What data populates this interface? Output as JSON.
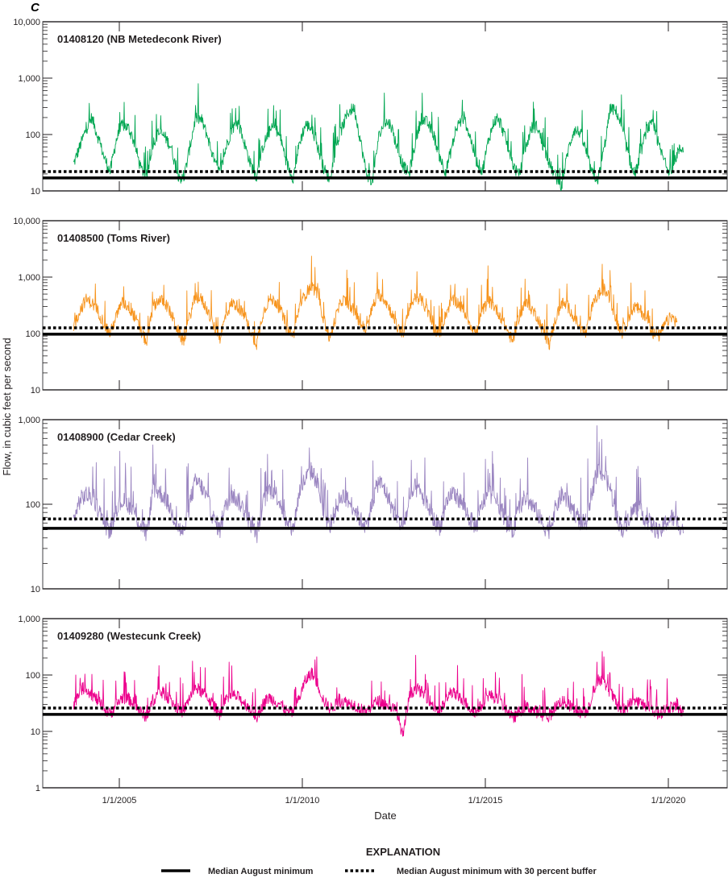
{
  "chart_data": {
    "type": "line",
    "panel_letter": "C",
    "xlabel": "Date",
    "ylabel": "Flow, in cubic feet per second",
    "x_range": [
      "2003-01-01",
      "2021-07-01"
    ],
    "x_ticks": [
      "1/1/2005",
      "1/1/2010",
      "1/1/2015",
      "1/1/2020"
    ],
    "x_tick_years": [
      2005,
      2010,
      2015,
      2020
    ],
    "y_scale": "log",
    "legend": {
      "title": "EXPLANATION",
      "position": "bottom-center",
      "items": [
        {
          "label": "Median August minimum",
          "style": "solid"
        },
        {
          "label": "Median August minimum with 30 percent buffer",
          "style": "dotted"
        }
      ]
    },
    "series_start_year": 2003.75,
    "series_step_years": 0.1667,
    "panels": [
      {
        "title": "01408120 (NB Metedeconk River)",
        "color": "#00a651",
        "ylim": [
          10,
          10000
        ],
        "y_ticks": [
          10,
          100,
          1000,
          10000
        ],
        "y_tick_labels": [
          "10",
          "100",
          "1,000",
          "10,000"
        ],
        "median_august_minimum": 17,
        "median_august_minimum_30pct_buffer": 22,
        "values": [
          30,
          60,
          120,
          200,
          90,
          40,
          22,
          80,
          150,
          130,
          70,
          25,
          18,
          70,
          110,
          90,
          60,
          20,
          15,
          55,
          200,
          180,
          90,
          35,
          20,
          60,
          130,
          160,
          70,
          30,
          18,
          60,
          110,
          140,
          80,
          30,
          17,
          70,
          150,
          130,
          60,
          25,
          16,
          60,
          130,
          250,
          300,
          80,
          20,
          15,
          90,
          170,
          150,
          60,
          28,
          20,
          70,
          200,
          160,
          100,
          40,
          22,
          60,
          150,
          200,
          90,
          35,
          22,
          80,
          180,
          160,
          70,
          30,
          18,
          50,
          130,
          140,
          60,
          30,
          18,
          12,
          50,
          120,
          110,
          50,
          20,
          16,
          60,
          300,
          250,
          120,
          40,
          18,
          50,
          130,
          150,
          60,
          30,
          20,
          50,
          60
        ]
      },
      {
        "title": "01408500 (Toms River)",
        "color": "#f7941d",
        "ylim": [
          10,
          10000
        ],
        "y_ticks": [
          10,
          100,
          1000,
          10000
        ],
        "y_tick_labels": [
          "10",
          "100",
          "1,000",
          "10,000"
        ],
        "median_august_minimum": 97,
        "median_august_minimum_30pct_buffer": 126,
        "values": [
          130,
          250,
          400,
          350,
          250,
          150,
          100,
          200,
          350,
          300,
          200,
          110,
          70,
          300,
          400,
          350,
          220,
          120,
          70,
          200,
          450,
          400,
          250,
          130,
          85,
          220,
          350,
          300,
          200,
          110,
          65,
          220,
          400,
          380,
          250,
          120,
          90,
          300,
          500,
          700,
          500,
          180,
          80,
          200,
          400,
          350,
          250,
          150,
          110,
          300,
          500,
          400,
          250,
          130,
          100,
          250,
          450,
          400,
          250,
          130,
          95,
          220,
          400,
          350,
          250,
          150,
          100,
          250,
          380,
          300,
          200,
          120,
          70,
          200,
          350,
          280,
          200,
          110,
          65,
          180,
          350,
          300,
          200,
          120,
          100,
          300,
          500,
          600,
          400,
          160,
          100,
          200,
          300,
          250,
          180,
          100,
          90,
          150,
          200,
          150
        ]
      },
      {
        "title": "01408900 (Cedar Creek)",
        "color": "#9b86c1",
        "ylim": [
          10,
          1000
        ],
        "y_ticks": [
          10,
          100,
          1000
        ],
        "y_tick_labels": [
          "10",
          "100",
          "1,000"
        ],
        "median_august_minimum": 52,
        "median_august_minimum_30pct_buffer": 67,
        "values": [
          65,
          110,
          130,
          120,
          90,
          60,
          48,
          90,
          110,
          100,
          80,
          55,
          45,
          150,
          140,
          120,
          85,
          55,
          45,
          100,
          190,
          160,
          110,
          65,
          50,
          100,
          130,
          110,
          85,
          60,
          42,
          100,
          150,
          140,
          100,
          55,
          50,
          140,
          200,
          250,
          180,
          75,
          55,
          90,
          130,
          110,
          90,
          65,
          55,
          110,
          190,
          150,
          100,
          65,
          55,
          100,
          160,
          130,
          100,
          65,
          55,
          90,
          140,
          120,
          95,
          65,
          55,
          100,
          140,
          120,
          90,
          60,
          48,
          90,
          120,
          100,
          80,
          55,
          50,
          90,
          130,
          110,
          85,
          60,
          60,
          150,
          250,
          220,
          150,
          70,
          50,
          70,
          90,
          80,
          65,
          55,
          45,
          60,
          70,
          60,
          50
        ]
      },
      {
        "title": "01409280 (Westecunk Creek)",
        "color": "#ec008c",
        "ylim": [
          1,
          1000
        ],
        "y_ticks": [
          1,
          10,
          100,
          1000
        ],
        "y_tick_labels": [
          "1",
          "10",
          "100",
          "1,000"
        ],
        "median_august_minimum": 20,
        "median_august_minimum_30pct_buffer": 26,
        "values": [
          28,
          55,
          60,
          45,
          35,
          25,
          20,
          30,
          40,
          38,
          30,
          22,
          18,
          35,
          50,
          45,
          35,
          25,
          22,
          40,
          60,
          50,
          40,
          28,
          20,
          35,
          45,
          40,
          32,
          25,
          18,
          30,
          40,
          35,
          30,
          22,
          22,
          40,
          80,
          110,
          70,
          35,
          25,
          30,
          35,
          32,
          30,
          25,
          22,
          30,
          35,
          30,
          28,
          22,
          8,
          40,
          60,
          50,
          40,
          28,
          22,
          35,
          50,
          40,
          35,
          25,
          22,
          30,
          45,
          40,
          32,
          25,
          17,
          22,
          28,
          25,
          22,
          18,
          18,
          28,
          35,
          30,
          25,
          22,
          22,
          40,
          90,
          70,
          50,
          30,
          22,
          30,
          35,
          32,
          28,
          22,
          20,
          25,
          28,
          25,
          22
        ]
      }
    ]
  }
}
